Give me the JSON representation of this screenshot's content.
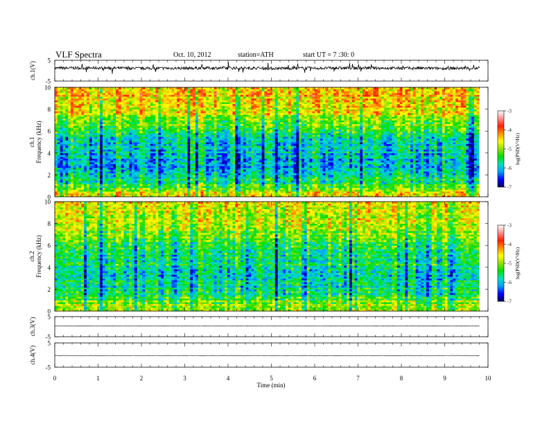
{
  "header": {
    "title": "VLF  Spectra",
    "date": "Oct. 10, 2012",
    "station": "station=ATH",
    "start": "start  UT  =   7 :30: 0"
  },
  "colorbar": {
    "label": "log(PSD(V²/Hz)",
    "range": [
      -7,
      -3
    ],
    "ticks": [
      "-3",
      "-4",
      "-5",
      "-6",
      "-7"
    ],
    "colors": [
      "#000060",
      "#0000ff",
      "#00a0ff",
      "#00e0c0",
      "#00e000",
      "#90e000",
      "#ffff00",
      "#ff9000",
      "#ff2000",
      "#ff9090",
      "#ffffff"
    ]
  },
  "chart_data": [
    {
      "type": "line",
      "panel": "ch1-waveform",
      "ylabel": "ch.1(V)",
      "yticks": [
        "5",
        "-5"
      ],
      "ylim": [
        -5,
        5
      ],
      "x": [
        0,
        1,
        2,
        3,
        4,
        5,
        6,
        7,
        8,
        9,
        9.8
      ],
      "values": [
        1.2,
        1.3,
        1.1,
        1.2,
        1.3,
        1.1,
        1.2,
        1.3,
        1.2,
        1.1,
        1.2
      ]
    },
    {
      "type": "heatmap",
      "panel": "ch1-spectrogram",
      "ylabel": "Frequency (kHz)",
      "channel": "ch.1",
      "yticks": [
        "0",
        "2",
        "4",
        "6",
        "8",
        "10"
      ],
      "ylim": [
        0,
        10
      ],
      "xlim": [
        0,
        9.8
      ],
      "levels_by_freq": [
        [
          10,
          -4.2
        ],
        [
          8,
          -4.6
        ],
        [
          6,
          -5.4
        ],
        [
          5,
          -5.7
        ],
        [
          4,
          -5.9
        ],
        [
          3,
          -6.0
        ],
        [
          2,
          -5.8
        ],
        [
          1,
          -5.3
        ],
        [
          0.5,
          -4.8
        ],
        [
          0,
          -4.4
        ]
      ]
    },
    {
      "type": "heatmap",
      "panel": "ch2-spectrogram",
      "ylabel": "Frequency (kHz)",
      "channel": "ch.2",
      "yticks": [
        "0",
        "2",
        "4",
        "6",
        "8",
        "10"
      ],
      "ylim": [
        0,
        10
      ],
      "xlim": [
        0,
        9.8
      ],
      "levels_by_freq": [
        [
          10,
          -4.6
        ],
        [
          8,
          -4.9
        ],
        [
          6,
          -5.4
        ],
        [
          5,
          -5.6
        ],
        [
          4,
          -5.7
        ],
        [
          3,
          -5.8
        ],
        [
          2,
          -5.7
        ],
        [
          1,
          -5.2
        ],
        [
          0.5,
          -4.9
        ],
        [
          0,
          -4.7
        ]
      ]
    },
    {
      "type": "line",
      "panel": "ch3-waveform",
      "ylabel": "ch.3(V)",
      "yticks": [
        "5",
        "-5"
      ],
      "ylim": [
        -5,
        5
      ],
      "x": [
        0,
        9.8
      ],
      "values": [
        0.3,
        0.3
      ]
    },
    {
      "type": "line",
      "panel": "ch4-waveform",
      "ylabel": "ch.4(V)",
      "yticks": [
        "5",
        "-5"
      ],
      "ylim": [
        -5,
        5
      ],
      "x": [
        0,
        9.8
      ],
      "values": [
        -0.2,
        -0.2
      ]
    }
  ],
  "xaxis": {
    "label": "Time  (min)",
    "ticks": [
      "0",
      "1",
      "2",
      "3",
      "4",
      "5",
      "6",
      "7",
      "8",
      "9",
      "10"
    ],
    "xlim": [
      0,
      10
    ]
  }
}
